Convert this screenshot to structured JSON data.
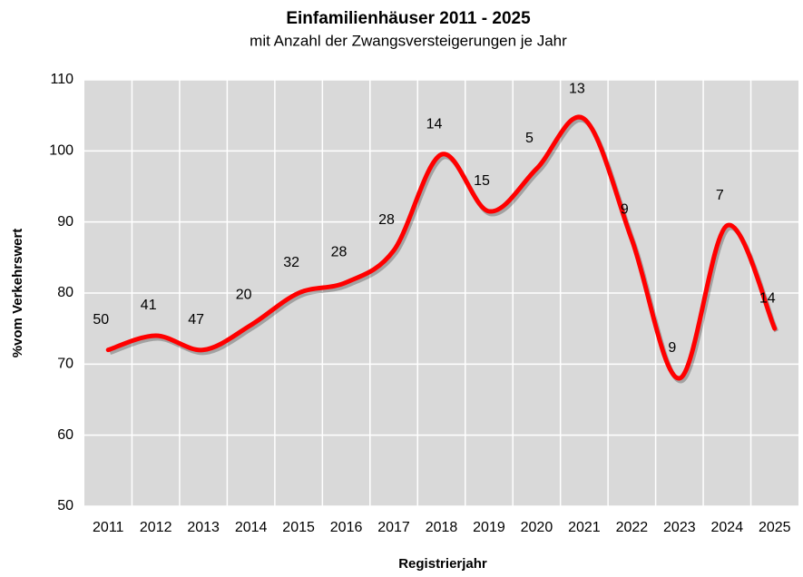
{
  "chart_data": {
    "type": "line",
    "title": "Einfamilienhäuser 2011 - 2025",
    "subtitle": "mit Anzahl der Zwangsversteigerungen je Jahr",
    "x_label": "Registrierjahr",
    "y_label": "%vom Verkehrswert",
    "categories": [
      "2011",
      "2012",
      "2013",
      "2014",
      "2015",
      "2016",
      "2017",
      "2018",
      "2019",
      "2020",
      "2021",
      "2022",
      "2023",
      "2024",
      "2025"
    ],
    "series": [
      {
        "name": "%vom Verkehrswert",
        "color": "#ff0000",
        "values": [
          72,
          74,
          72,
          75.5,
          80,
          81.5,
          86,
          99.5,
          91.5,
          97.5,
          104.5,
          87.5,
          68,
          89.5,
          75
        ],
        "data_labels": [
          50,
          41,
          47,
          20,
          32,
          28,
          28,
          14,
          15,
          5,
          13,
          9,
          9,
          7,
          14
        ]
      }
    ],
    "ylim": [
      50,
      110
    ],
    "yticks": [
      50,
      60,
      70,
      80,
      90,
      100,
      110
    ],
    "grid": true,
    "plot_background": "#d9d9d9"
  }
}
